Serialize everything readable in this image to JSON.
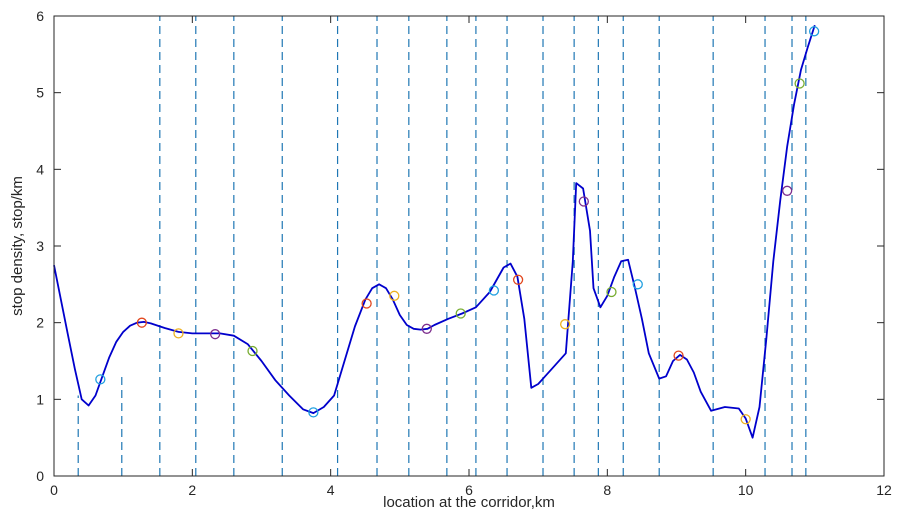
{
  "chart_data": {
    "type": "line",
    "title": "",
    "xlabel": "location at the corridor,km",
    "ylabel": "stop density, stop/km",
    "xlim": [
      0,
      12
    ],
    "ylim": [
      0,
      6
    ],
    "xticks": [
      0,
      2,
      4,
      6,
      8,
      10,
      12
    ],
    "yticks": [
      0,
      1,
      2,
      3,
      4,
      5,
      6
    ],
    "grid": false,
    "legend": "none",
    "colors": {
      "curve": "#0000cc",
      "boundary": "#1f77b4",
      "marker_palette": [
        "#1f9fe0",
        "#e2461d",
        "#edb120",
        "#7e2f8e",
        "#77ac30"
      ]
    },
    "density_curve": {
      "x": [
        0,
        0.1,
        0.2,
        0.3,
        0.4,
        0.5,
        0.6,
        0.7,
        0.8,
        0.9,
        1.0,
        1.1,
        1.2,
        1.3,
        1.4,
        1.6,
        1.8,
        2.0,
        2.2,
        2.4,
        2.6,
        2.8,
        3.0,
        3.2,
        3.4,
        3.6,
        3.75,
        3.9,
        4.05,
        4.2,
        4.35,
        4.5,
        4.6,
        4.7,
        4.8,
        4.9,
        5.0,
        5.1,
        5.2,
        5.3,
        5.4,
        5.5,
        5.7,
        5.9,
        6.1,
        6.3,
        6.5,
        6.6,
        6.7,
        6.8,
        6.9,
        7.0,
        7.1,
        7.2,
        7.4,
        7.5,
        7.55,
        7.65,
        7.75,
        7.8,
        7.9,
        8.0,
        8.1,
        8.2,
        8.3,
        8.4,
        8.5,
        8.6,
        8.75,
        8.85,
        8.95,
        9.05,
        9.15,
        9.25,
        9.35,
        9.5,
        9.7,
        9.9,
        10.0,
        10.1,
        10.2,
        10.3,
        10.4,
        10.5,
        10.6,
        10.7,
        10.8,
        10.9,
        11.0
      ],
      "y": [
        2.75,
        2.3,
        1.85,
        1.4,
        1.0,
        0.92,
        1.05,
        1.3,
        1.55,
        1.75,
        1.88,
        1.96,
        2.0,
        2.01,
        1.99,
        1.93,
        1.88,
        1.86,
        1.86,
        1.86,
        1.83,
        1.72,
        1.5,
        1.25,
        1.05,
        0.87,
        0.82,
        0.9,
        1.05,
        1.5,
        1.95,
        2.3,
        2.45,
        2.5,
        2.45,
        2.3,
        2.1,
        1.97,
        1.92,
        1.91,
        1.92,
        1.97,
        2.05,
        2.12,
        2.2,
        2.4,
        2.72,
        2.77,
        2.6,
        2.05,
        1.15,
        1.2,
        1.3,
        1.4,
        1.6,
        2.8,
        3.82,
        3.75,
        3.2,
        2.45,
        2.2,
        2.35,
        2.6,
        2.8,
        2.82,
        2.45,
        2.05,
        1.6,
        1.27,
        1.3,
        1.5,
        1.58,
        1.52,
        1.35,
        1.1,
        0.85,
        0.9,
        0.88,
        0.75,
        0.5,
        0.9,
        1.8,
        2.8,
        3.6,
        4.3,
        4.85,
        5.3,
        5.6,
        5.88
      ]
    },
    "stop_markers": {
      "x": [
        0.67,
        1.27,
        1.8,
        2.33,
        2.87,
        3.75,
        4.52,
        4.92,
        5.39,
        5.88,
        6.36,
        6.71,
        7.39,
        7.66,
        8.06,
        8.44,
        9.03,
        10.0,
        10.6,
        10.78,
        10.99
      ],
      "y": [
        1.26,
        2.0,
        1.86,
        1.85,
        1.63,
        0.83,
        2.25,
        2.35,
        1.92,
        2.12,
        2.42,
        2.56,
        1.98,
        3.58,
        2.4,
        2.5,
        1.57,
        0.74,
        3.72,
        5.12,
        5.8
      ]
    },
    "stop_boundaries": {
      "x": [
        0.35,
        0.98,
        1.53,
        2.05,
        2.6,
        3.3,
        4.1,
        4.67,
        5.13,
        5.68,
        6.1,
        6.55,
        7.07,
        7.52,
        7.87,
        8.23,
        8.75,
        9.53,
        10.28,
        10.67,
        10.87
      ],
      "y_top": [
        1.05,
        1.35,
        6,
        6,
        6,
        6,
        6,
        6,
        6,
        6,
        6,
        6,
        6,
        6,
        6,
        6,
        6,
        6,
        6,
        6,
        6
      ]
    }
  }
}
